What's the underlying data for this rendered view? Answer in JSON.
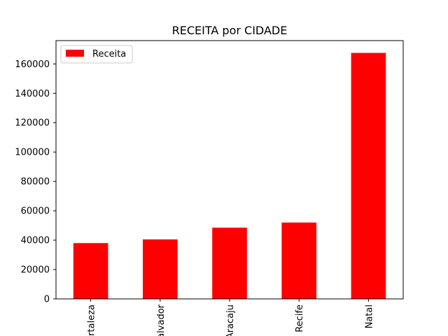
{
  "chart_data": {
    "type": "bar",
    "title": "RECEITA por CIDADE",
    "xlabel": "",
    "ylabel": "",
    "categories": [
      "Fortaleza",
      "Salvador",
      "Aracaju",
      "Recife",
      "Natal"
    ],
    "series": [
      {
        "name": "Receita",
        "values": [
          38000,
          40500,
          48500,
          52000,
          167500
        ],
        "color": "#ff0000"
      }
    ],
    "ylim": [
      0,
      175875
    ],
    "yticks": [
      0,
      20000,
      40000,
      60000,
      80000,
      100000,
      120000,
      140000,
      160000
    ],
    "ytick_labels": [
      "0",
      "20000",
      "40000",
      "60000",
      "80000",
      "100000",
      "120000",
      "140000",
      "160000"
    ],
    "legend": {
      "position": "top-left",
      "label": "Receita"
    },
    "grid": false,
    "xtick_rotation": 90
  }
}
